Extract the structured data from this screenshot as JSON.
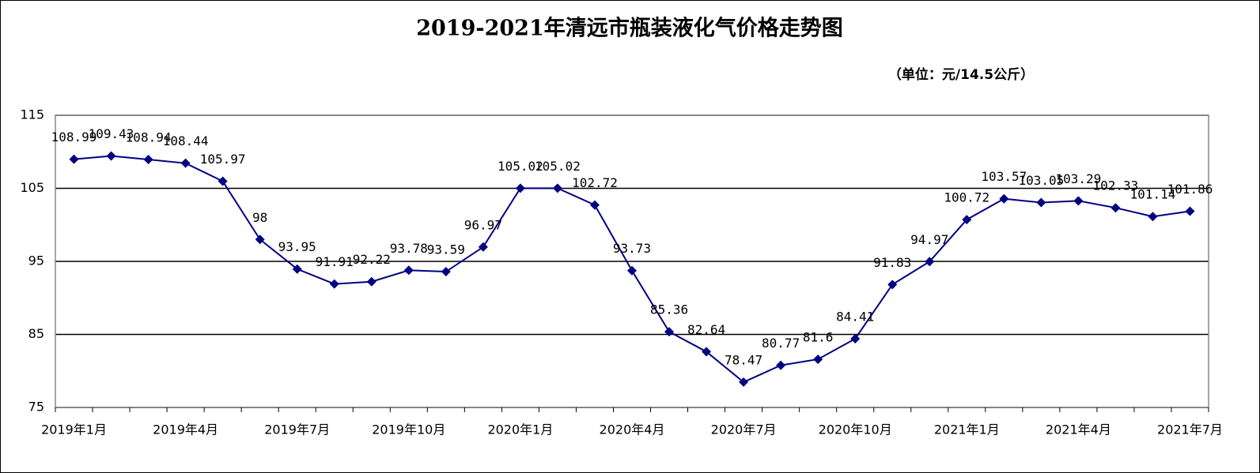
{
  "chart_data": {
    "type": "line",
    "title": "2019-2021年清远市瓶装液化气价格走势图",
    "subtitle": "（单位：元/14.5公斤）",
    "categories": [
      "2019年1月",
      null,
      null,
      "2019年4月",
      null,
      null,
      "2019年7月",
      null,
      null,
      "2019年10月",
      null,
      null,
      "2020年1月",
      null,
      null,
      "2020年4月",
      null,
      null,
      "2020年7月",
      null,
      null,
      "2020年10月",
      null,
      null,
      "2021年1月",
      null,
      null,
      "2021年4月",
      null,
      null,
      "2021年7月"
    ],
    "values": [
      108.99,
      109.43,
      108.94,
      108.44,
      105.97,
      98,
      93.95,
      91.91,
      92.22,
      93.78,
      93.59,
      96.97,
      105.02,
      105.02,
      102.72,
      93.73,
      85.36,
      82.64,
      78.47,
      80.77,
      81.6,
      84.41,
      91.83,
      94.97,
      100.72,
      103.57,
      103.05,
      103.29,
      102.33,
      101.14,
      101.86
    ],
    "color": "#000080",
    "ylim": [
      75,
      115
    ],
    "yticks": [
      75,
      85,
      95,
      105,
      115
    ],
    "grid": true
  }
}
